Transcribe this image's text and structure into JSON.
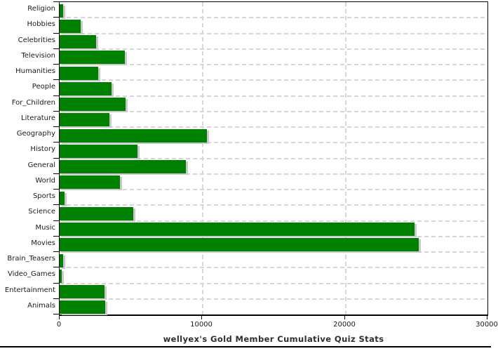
{
  "chart_data": {
    "type": "bar",
    "orientation": "horizontal",
    "title": "wellyex's Gold Member Cumulative Quiz Stats",
    "categories": [
      "Religion",
      "Hobbies",
      "Celebrities",
      "Television",
      "Humanities",
      "People",
      "For_Children",
      "Literature",
      "Geography",
      "History",
      "General",
      "World",
      "Sports",
      "Science",
      "Music",
      "Movies",
      "Brain_Teasers",
      "Video_Games",
      "Entertainment",
      "Animals"
    ],
    "values": [
      250,
      1500,
      2550,
      4550,
      2700,
      3650,
      4600,
      3500,
      10350,
      5450,
      8850,
      4250,
      350,
      5150,
      24900,
      25200,
      250,
      150,
      3150,
      3200
    ],
    "xlim": [
      0,
      30000
    ],
    "x_ticks": [
      0,
      10000,
      20000,
      30000
    ],
    "x_tick_labels": [
      "0",
      "10000",
      "20000",
      "30000"
    ],
    "xlabel": "",
    "ylabel": "",
    "grid": "dashed",
    "legend_position": "none",
    "bar_color": "#008000",
    "shadow_color": "#c9c9c9",
    "gridline_color": "#d7d7d7"
  }
}
